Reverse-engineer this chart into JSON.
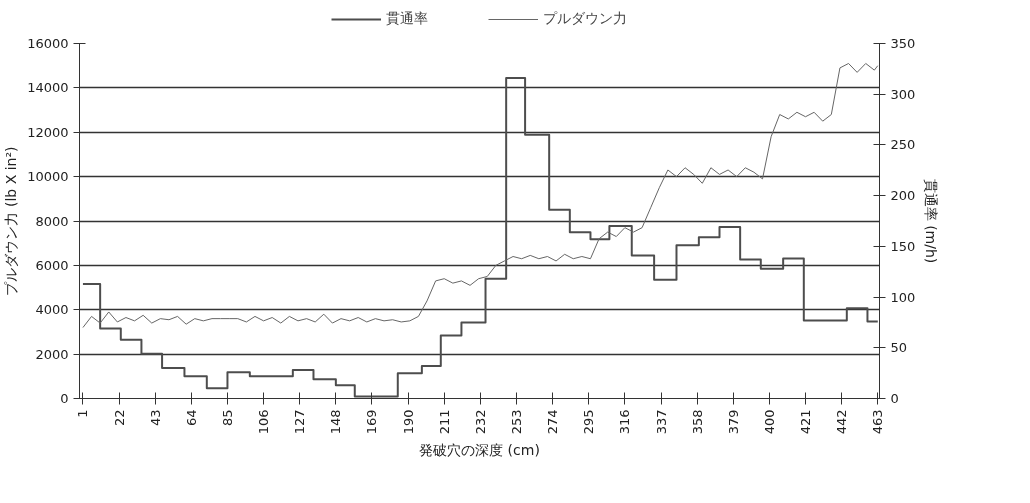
{
  "chart_data": {
    "type": "line",
    "xlabel": "発破穴の深度 (cm)",
    "ylabel": "プルダウン力 (lb X in²)",
    "y2label": "貫通率 (m/h)",
    "xlim": [
      -1,
      464
    ],
    "xticks": [
      1,
      22,
      43,
      64,
      85,
      106,
      127,
      148,
      169,
      190,
      211,
      232,
      253,
      274,
      295,
      316,
      337,
      358,
      379,
      400,
      421,
      442,
      463
    ],
    "ylim": [
      0,
      16000
    ],
    "yticks": [
      0,
      2000,
      4000,
      6000,
      8000,
      10000,
      12000,
      14000,
      16000
    ],
    "y2lim": [
      0,
      350
    ],
    "y2ticks": [
      0,
      50,
      100,
      150,
      200,
      250,
      300,
      350
    ],
    "grid": "y",
    "legend": "top",
    "series": [
      {
        "name": "貫通率",
        "type": "step",
        "axis": "y2",
        "color": "#4d4d4d",
        "x": [
          1,
          11,
          23,
          35,
          47,
          60,
          73,
          85,
          98,
          123,
          135,
          148,
          159,
          184,
          198,
          209,
          221,
          235,
          247,
          258,
          272,
          284,
          296,
          307,
          320,
          333,
          346,
          359,
          371,
          383,
          395,
          408,
          420,
          445,
          457,
          463
        ],
        "values": [
          113,
          69,
          58,
          44,
          30,
          22,
          10,
          26,
          22,
          28,
          19,
          13,
          2,
          25,
          32,
          62,
          75,
          118,
          316,
          260,
          186,
          164,
          157,
          170,
          141,
          117,
          151,
          159,
          169,
          137,
          128,
          138,
          77,
          89,
          76,
          76
        ]
      },
      {
        "name": "プルダウン力",
        "type": "line",
        "color": "#666666",
        "x": [
          1,
          6,
          11,
          16,
          21,
          26,
          31,
          36,
          41,
          46,
          51,
          56,
          61,
          66,
          71,
          76,
          81,
          86,
          91,
          96,
          101,
          106,
          111,
          116,
          121,
          126,
          131,
          136,
          141,
          146,
          151,
          156,
          161,
          166,
          171,
          176,
          181,
          186,
          191,
          196,
          201,
          206,
          211,
          216,
          221,
          226,
          231,
          236,
          241,
          246,
          251,
          256,
          261,
          266,
          271,
          276,
          281,
          286,
          291,
          296,
          301,
          306,
          311,
          316,
          321,
          326,
          331,
          336,
          341,
          346,
          351,
          356,
          361,
          366,
          371,
          376,
          381,
          386,
          391,
          396,
          401,
          406,
          411,
          416,
          421,
          426,
          431,
          436,
          441,
          446,
          451,
          456,
          461,
          463
        ],
        "values": [
          3200,
          3700,
          3400,
          3900,
          3450,
          3650,
          3500,
          3750,
          3400,
          3600,
          3550,
          3700,
          3350,
          3600,
          3500,
          3600,
          3600,
          3600,
          3600,
          3450,
          3700,
          3500,
          3650,
          3400,
          3700,
          3500,
          3600,
          3450,
          3800,
          3400,
          3600,
          3500,
          3650,
          3450,
          3600,
          3500,
          3550,
          3450,
          3500,
          3700,
          4400,
          5300,
          5400,
          5200,
          5300,
          5100,
          5400,
          5500,
          6000,
          6200,
          6400,
          6300,
          6450,
          6300,
          6400,
          6200,
          6500,
          6300,
          6400,
          6300,
          7200,
          7500,
          7300,
          7700,
          7500,
          7700,
          8600,
          9500,
          10300,
          10000,
          10400,
          10100,
          9700,
          10400,
          10100,
          10300,
          10000,
          10400,
          10200,
          9900,
          11800,
          12800,
          12600,
          12900,
          12700,
          12900,
          12500,
          12800,
          14900,
          15100,
          14700,
          15100,
          14800,
          15000
        ]
      }
    ]
  }
}
